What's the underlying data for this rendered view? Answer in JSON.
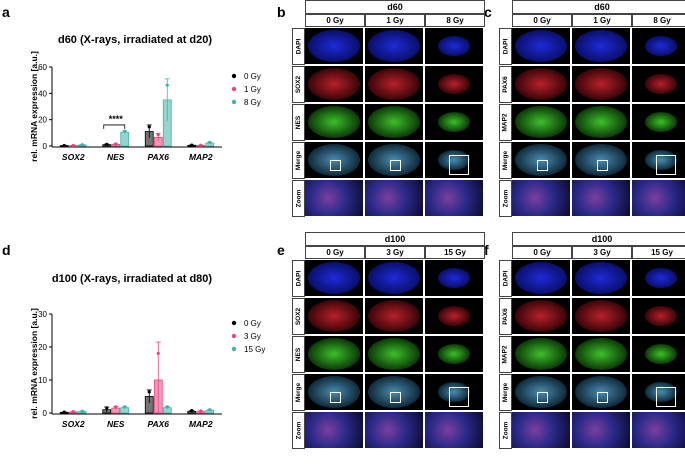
{
  "letters": {
    "a": "a",
    "b": "b",
    "c": "c",
    "d": "d",
    "e": "e",
    "f": "f"
  },
  "chart_data": [
    {
      "type": "bar",
      "title": "d60 (X-rays, irradiated at d20)",
      "ylabel": "rel. mRNA expression [a.u.]",
      "xlabel": "",
      "ylim": [
        0,
        60
      ],
      "yticks": [
        0,
        20,
        40,
        60
      ],
      "categories": [
        "SOX2",
        "NES",
        "PAX6",
        "MAP2"
      ],
      "series": [
        {
          "name": "0 Gy",
          "color": "#000000",
          "values": [
            0.3,
            1.0,
            11.0,
            0.5
          ],
          "errors": [
            0.2,
            0.4,
            5.0,
            0.3
          ]
        },
        {
          "name": "1 Gy",
          "color": "#e8457f",
          "values": [
            0.3,
            1.2,
            6.5,
            0.4
          ],
          "errors": [
            0.2,
            0.5,
            3.0,
            0.3
          ]
        },
        {
          "name": "8 Gy",
          "color": "#3fb3a8",
          "values": [
            0.8,
            10.5,
            35.0,
            2.2
          ],
          "errors": [
            0.3,
            1.0,
            16.0,
            0.8
          ]
        }
      ],
      "significance": {
        "label": "****",
        "category": "NES"
      },
      "legend": "right"
    },
    {
      "type": "bar",
      "title": "d100 (X-rays, irradiated at d80)",
      "ylabel": "rel. mRNA expression [a.u.]",
      "xlabel": "",
      "ylim": [
        0,
        30
      ],
      "yticks": [
        0,
        10,
        20,
        30
      ],
      "categories": [
        "SOX2",
        "NES",
        "PAX6",
        "MAP2"
      ],
      "series": [
        {
          "name": "0 Gy",
          "color": "#000000",
          "values": [
            0.2,
            1.0,
            5.0,
            0.5
          ],
          "errors": [
            0.1,
            0.8,
            2.0,
            0.3
          ]
        },
        {
          "name": "3 Gy",
          "color": "#e8457f",
          "values": [
            0.3,
            1.5,
            10.0,
            0.4
          ],
          "errors": [
            0.2,
            0.5,
            11.5,
            0.3
          ]
        },
        {
          "name": "15 Gy",
          "color": "#3fb3a8",
          "values": [
            0.4,
            1.6,
            1.6,
            0.8
          ],
          "errors": [
            0.2,
            0.4,
            0.4,
            0.3
          ]
        }
      ],
      "legend": "right"
    }
  ],
  "panels": {
    "b": {
      "header": "d60",
      "cols": [
        "0 Gy",
        "1 Gy",
        "8 Gy"
      ],
      "rows": [
        "DAPI",
        "SOX2",
        "NES",
        "Merge",
        "Zoom"
      ]
    },
    "c": {
      "header": "d60",
      "cols": [
        "0 Gy",
        "1 Gy",
        "8 Gy"
      ],
      "rows": [
        "DAPI",
        "PAX6",
        "MAP2",
        "Merge",
        "Zoom"
      ]
    },
    "e": {
      "header": "d100",
      "cols": [
        "0 Gy",
        "3 Gy",
        "15 Gy"
      ],
      "rows": [
        "DAPI",
        "SOX2",
        "NES",
        "Merge",
        "Zoom"
      ]
    },
    "f": {
      "header": "d100",
      "cols": [
        "0 Gy",
        "3 Gy",
        "15 Gy"
      ],
      "rows": [
        "DAPI",
        "PAX6",
        "MAP2",
        "Merge",
        "Zoom"
      ]
    }
  }
}
